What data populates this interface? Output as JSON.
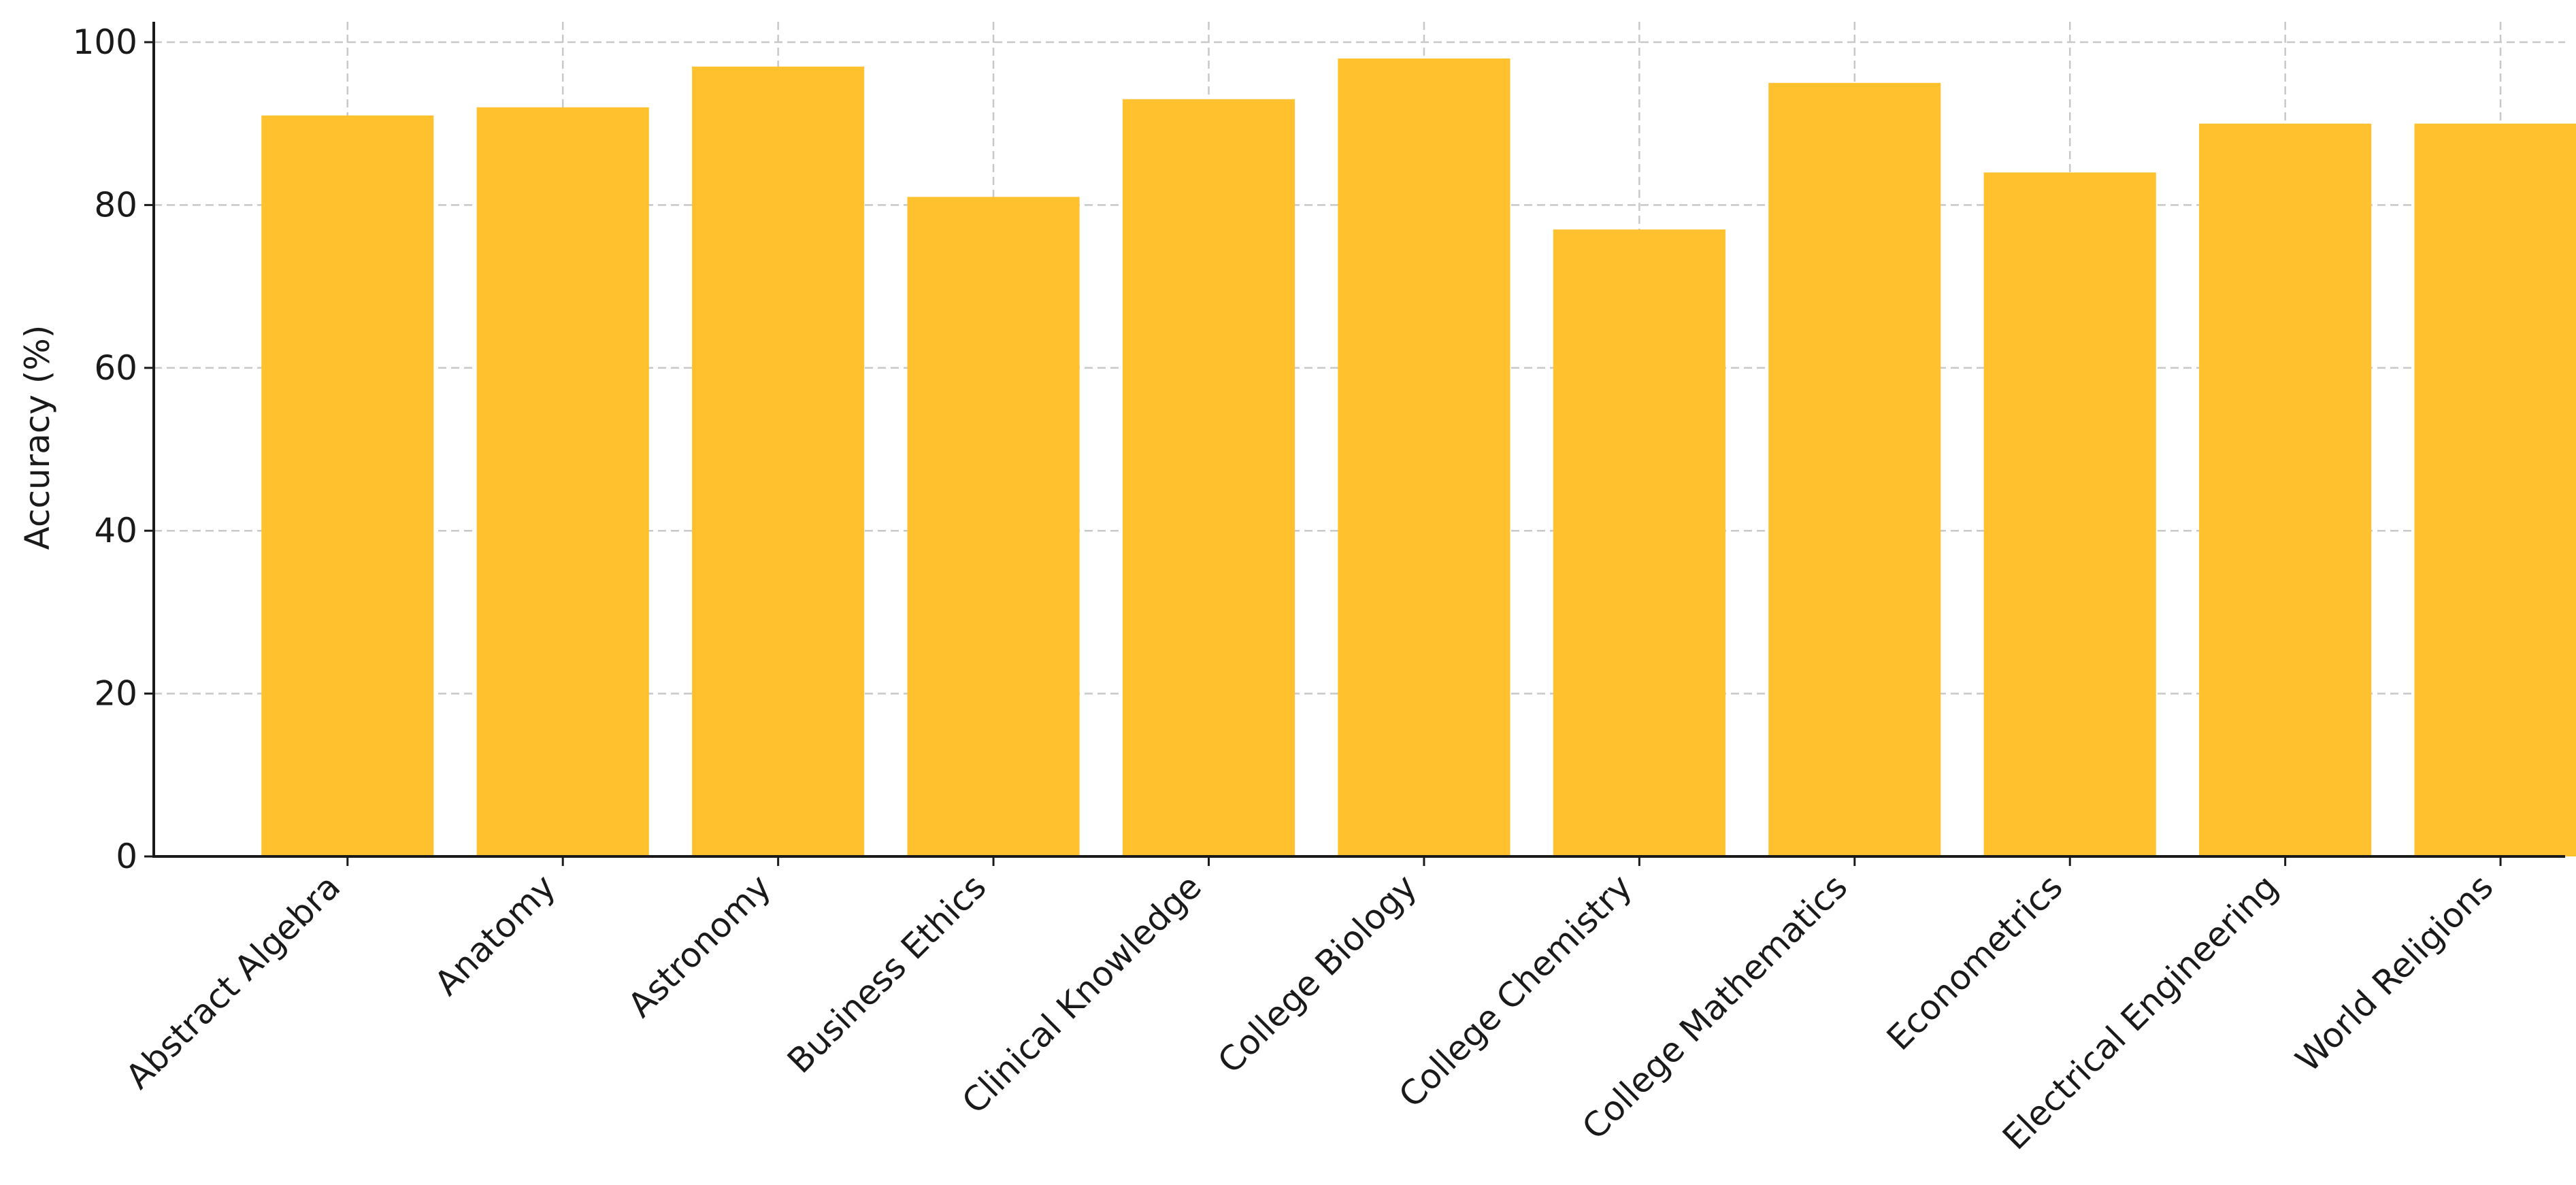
{
  "chart_data": {
    "type": "bar",
    "title": "",
    "xlabel": "",
    "ylabel": "Accuracy (%)",
    "ylim": [
      0,
      100
    ],
    "yticks": [
      0,
      20,
      40,
      60,
      80,
      100
    ],
    "grid": true,
    "bar_color": "#FFC22E",
    "categories": [
      "Abstract Algebra",
      "Anatomy",
      "Astronomy",
      "Business Ethics",
      "Clinical Knowledge",
      "College Biology",
      "College Chemistry",
      "College Mathematics",
      "Econometrics",
      "Electrical Engineering",
      "World Religions"
    ],
    "values": [
      91,
      92,
      97,
      81,
      93,
      98,
      77,
      95,
      84,
      90,
      90
    ]
  }
}
